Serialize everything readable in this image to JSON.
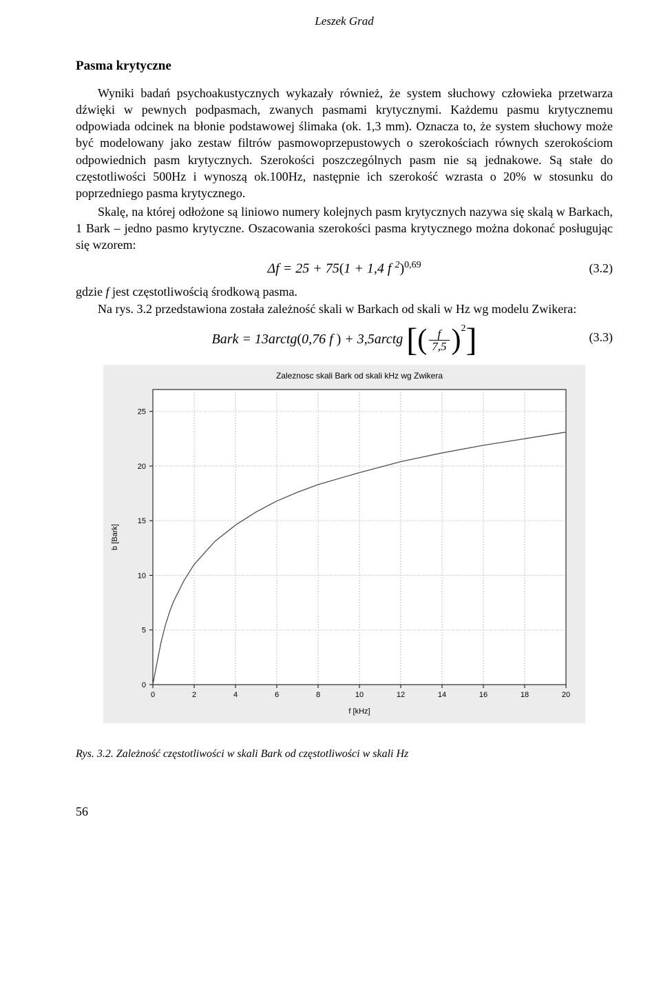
{
  "header_author": "Leszek Grad",
  "section_title": "Pasma krytyczne",
  "para1": "Wyniki badań psychoakustycznych wykazały również, że system słuchowy człowieka przetwarza dźwięki w pewnych podpasmach, zwanych pasmami krytycznymi. Każdemu pasmu krytycznemu odpowiada odcinek na błonie podstawowej ślimaka (ok. 1,3 mm). Oznacza to, że system słuchowy może być modelowany jako zestaw filtrów pasmowoprzepustowych o szerokościach równych szerokościom odpowiednich pasm krytycznych. Szerokości poszczególnych pasm nie są jednakowe. Są stałe do częstotliwości 500Hz i wynoszą ok.100Hz, następnie ich szerokość wzrasta o 20% w stosunku do poprzedniego pasma krytycznego.",
  "para2": "Skalę, na której odłożone są liniowo numery kolejnych pasm krytycznych nazywa się skalą w Barkach, 1 Bark – jedno pasmo krytyczne. Oszacowania szerokości pasma krytycznego można dokonać posługując się wzorem:",
  "eq1_num": "(3.2)",
  "para3": "gdzie f jest częstotliwością środkową pasma.",
  "para4": "Na rys. 3.2 przedstawiona została zależność skali w Barkach od skali w Hz wg modelu Zwikera:",
  "eq2_num": "(3.3)",
  "caption": "Rys. 3.2. Zależność częstotliwości w skali Bark od częstotliwości w skali Hz",
  "page_number": "56",
  "chart": {
    "type": "line",
    "title": "Zaleznosc skali Bark od skali kHz wg Zwikera",
    "title_fontsize": 12,
    "xlabel": "f [kHz]",
    "ylabel": "b [Bark]",
    "label_fontsize": 11,
    "xlim": [
      0,
      20
    ],
    "ylim": [
      0,
      27
    ],
    "xtick_step": 2,
    "yticks": [
      0,
      5,
      10,
      15,
      20,
      25
    ],
    "background_color": "#ececec",
    "plot_background_color": "#ffffff",
    "grid_color": "#c8c8c8",
    "line_color": "#505050",
    "line_width": 1.3,
    "axis_color": "#000000",
    "tick_fontsize": 11,
    "data_x": [
      0,
      0.2,
      0.4,
      0.6,
      0.8,
      1,
      1.5,
      2,
      3,
      4,
      5,
      6,
      7,
      8,
      10,
      12,
      14,
      16,
      18,
      20
    ],
    "data_y": [
      0,
      2.0,
      3.9,
      5.4,
      6.6,
      7.6,
      9.5,
      11.0,
      13.1,
      14.6,
      15.8,
      16.8,
      17.6,
      18.3,
      19.4,
      20.4,
      21.2,
      21.9,
      22.5,
      23.1
    ]
  }
}
